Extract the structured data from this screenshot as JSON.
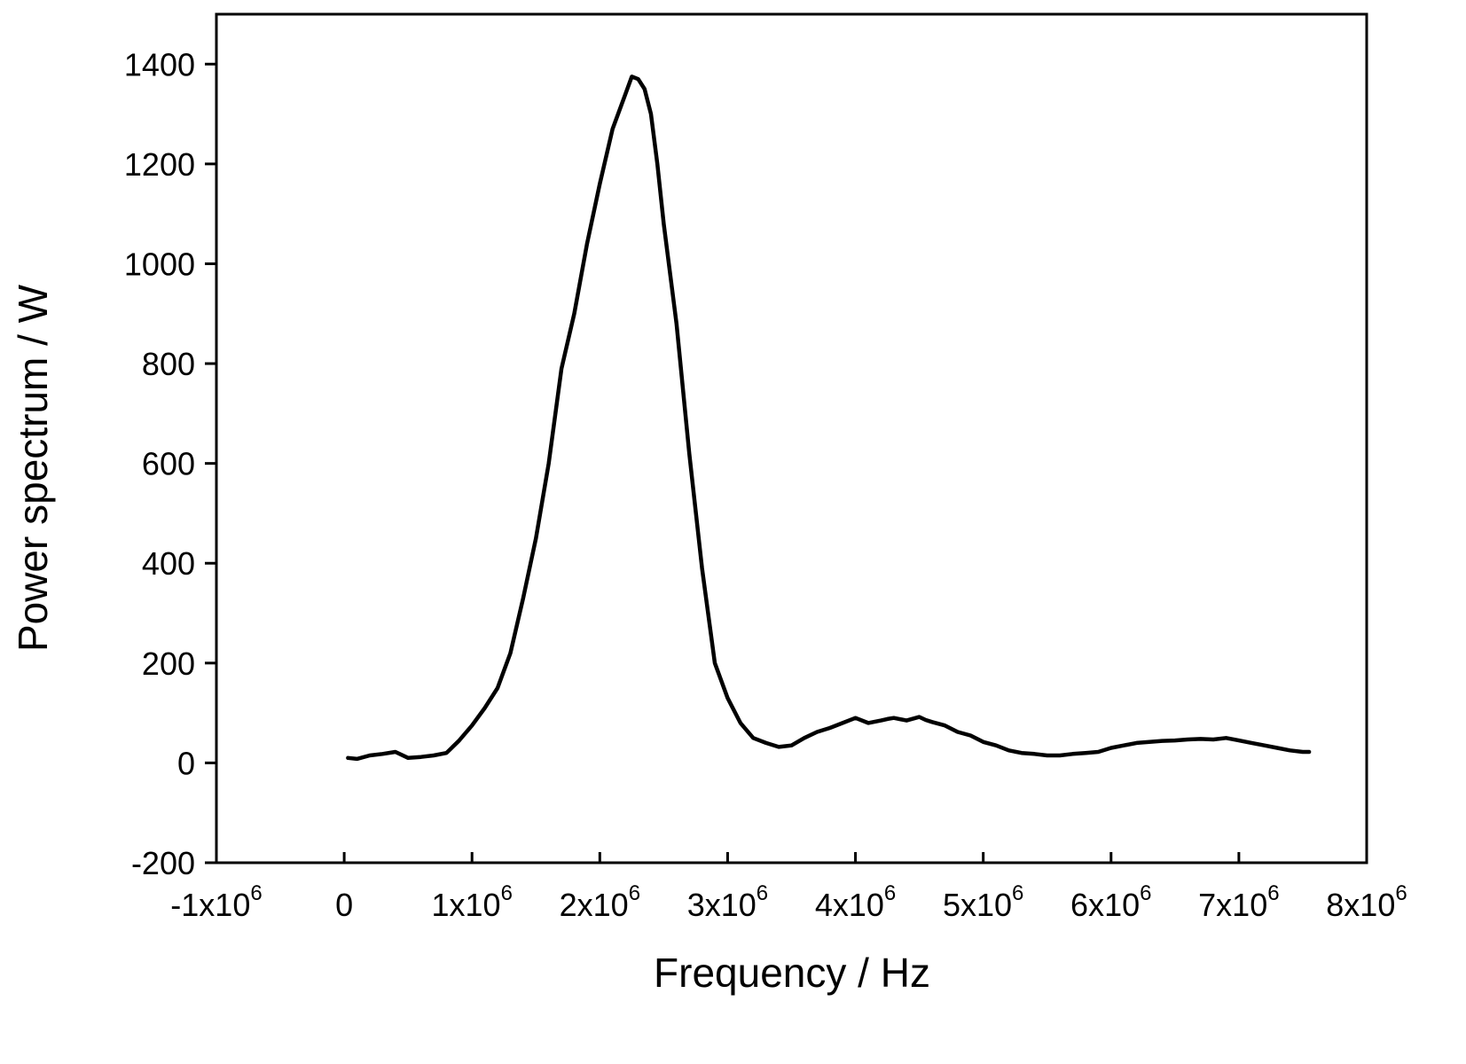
{
  "chart_data": {
    "type": "line",
    "title": "",
    "xlabel": "Frequency / Hz",
    "ylabel": "Power spectrum / W",
    "xlim": [
      -1000000,
      8000000
    ],
    "ylim": [
      -200,
      1500
    ],
    "grid": false,
    "legend": "none",
    "line_color": "#000000",
    "x_ticks": [
      {
        "value": -1000000,
        "mant": "-1x10",
        "exp": "6"
      },
      {
        "value": 0,
        "mant": "0",
        "exp": ""
      },
      {
        "value": 1000000,
        "mant": "1x10",
        "exp": "6"
      },
      {
        "value": 2000000,
        "mant": "2x10",
        "exp": "6"
      },
      {
        "value": 3000000,
        "mant": "3x10",
        "exp": "6"
      },
      {
        "value": 4000000,
        "mant": "4x10",
        "exp": "6"
      },
      {
        "value": 5000000,
        "mant": "5x10",
        "exp": "6"
      },
      {
        "value": 6000000,
        "mant": "6x10",
        "exp": "6"
      },
      {
        "value": 7000000,
        "mant": "7x10",
        "exp": "6"
      },
      {
        "value": 8000000,
        "mant": "8x10",
        "exp": "6"
      }
    ],
    "y_ticks": [
      {
        "value": -200,
        "label": "-200"
      },
      {
        "value": 0,
        "label": "0"
      },
      {
        "value": 200,
        "label": "200"
      },
      {
        "value": 400,
        "label": "400"
      },
      {
        "value": 600,
        "label": "600"
      },
      {
        "value": 800,
        "label": "800"
      },
      {
        "value": 1000,
        "label": "1000"
      },
      {
        "value": 1200,
        "label": "1200"
      },
      {
        "value": 1400,
        "label": "1400"
      }
    ],
    "series": [
      {
        "x": [
          30000,
          100000,
          200000,
          300000,
          400000,
          500000,
          600000,
          700000,
          800000,
          900000,
          1000000,
          1100000,
          1200000,
          1300000,
          1400000,
          1500000,
          1600000,
          1700000,
          1800000,
          1900000,
          2000000,
          2100000,
          2200000,
          2250000,
          2300000,
          2350000,
          2400000,
          2450000,
          2500000,
          2600000,
          2700000,
          2800000,
          2900000,
          3000000,
          3100000,
          3200000,
          3300000,
          3400000,
          3500000,
          3600000,
          3700000,
          3800000,
          3900000,
          4000000,
          4100000,
          4200000,
          4250000,
          4300000,
          4400000,
          4500000,
          4550000,
          4600000,
          4700000,
          4800000,
          4900000,
          5000000,
          5100000,
          5200000,
          5300000,
          5400000,
          5500000,
          5600000,
          5700000,
          5800000,
          5900000,
          6000000,
          6100000,
          6200000,
          6300000,
          6400000,
          6500000,
          6600000,
          6700000,
          6800000,
          6900000,
          7000000,
          7100000,
          7200000,
          7300000,
          7400000,
          7500000,
          7550000
        ],
        "y": [
          10,
          8,
          15,
          18,
          22,
          10,
          12,
          15,
          20,
          45,
          75,
          110,
          150,
          220,
          330,
          450,
          600,
          790,
          900,
          1040,
          1160,
          1270,
          1340,
          1375,
          1370,
          1350,
          1300,
          1200,
          1080,
          880,
          620,
          390,
          200,
          130,
          80,
          50,
          40,
          32,
          35,
          50,
          62,
          70,
          80,
          90,
          80,
          85,
          88,
          90,
          85,
          92,
          86,
          82,
          75,
          62,
          55,
          42,
          35,
          25,
          20,
          18,
          15,
          15,
          18,
          20,
          22,
          30,
          35,
          40,
          42,
          44,
          45,
          47,
          48,
          47,
          50,
          45,
          40,
          35,
          30,
          25,
          22,
          22
        ]
      }
    ]
  }
}
